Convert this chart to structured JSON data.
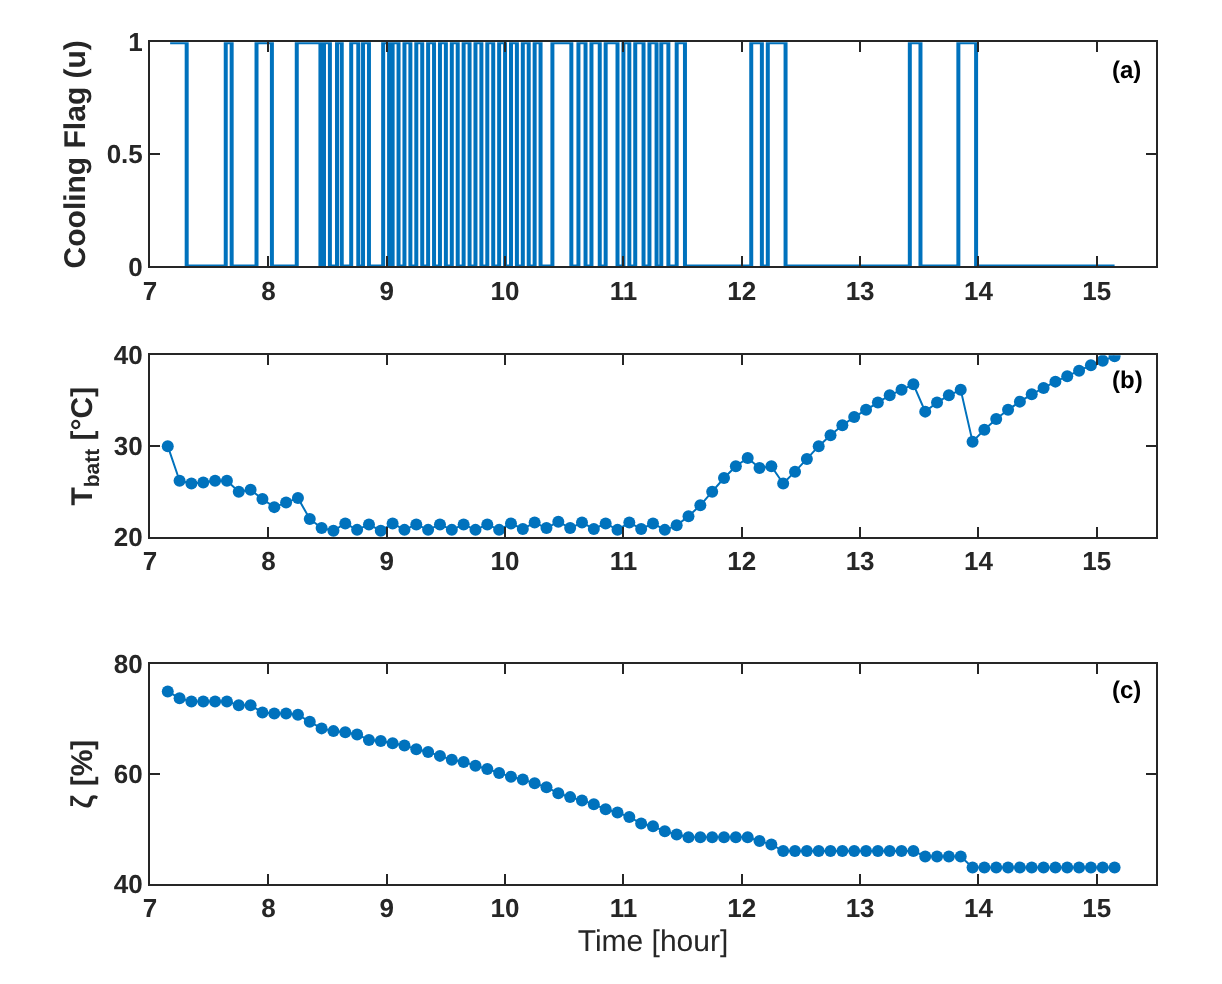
{
  "chart_data": [
    {
      "type": "step",
      "ylabel": "Cooling Flag (u)",
      "annotations": [
        "(a)"
      ],
      "xlim": [
        7,
        15.5
      ],
      "xticks": [
        7,
        8,
        9,
        10,
        11,
        12,
        13,
        14,
        15
      ],
      "ylim": [
        0,
        1
      ],
      "yticks": [
        0,
        0.5,
        1
      ],
      "marker": "none",
      "line_style": "solid",
      "series": [
        {
          "color": "#0072bd",
          "x": [
            7.17,
            7.31,
            7.64,
            7.69,
            7.9,
            8.03,
            8.24,
            8.44,
            8.47,
            8.52,
            8.58,
            8.62,
            8.7,
            8.76,
            8.8,
            8.85,
            8.97,
            9.02,
            9.05,
            9.1,
            9.15,
            9.2,
            9.25,
            9.3,
            9.35,
            9.4,
            9.45,
            9.5,
            9.55,
            9.6,
            9.65,
            9.7,
            9.75,
            9.8,
            9.85,
            9.9,
            9.95,
            10.0,
            10.05,
            10.1,
            10.15,
            10.2,
            10.25,
            10.3,
            10.4,
            10.56,
            10.62,
            10.68,
            10.73,
            10.8,
            10.85,
            10.95,
            11.0,
            11.05,
            11.1,
            11.17,
            11.22,
            11.28,
            11.32,
            11.38,
            11.45,
            11.52,
            12.08,
            12.17,
            12.22,
            12.37,
            13.42,
            13.51,
            13.83,
            13.98,
            15.15
          ],
          "values": [
            1,
            0,
            1,
            0,
            1,
            0,
            1,
            0,
            1,
            0,
            1,
            0,
            1,
            0,
            1,
            0,
            1,
            0,
            1,
            0,
            1,
            0,
            1,
            0,
            1,
            0,
            1,
            0,
            1,
            0,
            1,
            0,
            1,
            0,
            1,
            0,
            1,
            0,
            1,
            0,
            1,
            0,
            1,
            0,
            1,
            0,
            1,
            0,
            1,
            0,
            1,
            0,
            1,
            0,
            1,
            0,
            1,
            0,
            1,
            0,
            1,
            0,
            1,
            0,
            1,
            0,
            1,
            0,
            1,
            0,
            0
          ]
        }
      ]
    },
    {
      "type": "line",
      "ylabel": "T$_{batt}$ [°C]",
      "annotations": [
        "(b)"
      ],
      "xlim": [
        7,
        15.5
      ],
      "xticks": [
        7,
        8,
        9,
        10,
        11,
        12,
        13,
        14,
        15
      ],
      "ylim": [
        20,
        40
      ],
      "yticks": [
        20,
        30,
        40
      ],
      "marker": "circle",
      "line_style": "solid",
      "series": [
        {
          "color": "#0072bd",
          "x": [
            7.15,
            7.25,
            7.35,
            7.45,
            7.55,
            7.65,
            7.75,
            7.85,
            7.95,
            8.05,
            8.15,
            8.25,
            8.35,
            8.45,
            8.55,
            8.65,
            8.75,
            8.85,
            8.95,
            9.05,
            9.15,
            9.25,
            9.35,
            9.45,
            9.55,
            9.65,
            9.75,
            9.85,
            9.95,
            10.05,
            10.15,
            10.25,
            10.35,
            10.45,
            10.55,
            10.65,
            10.75,
            10.85,
            10.95,
            11.05,
            11.15,
            11.25,
            11.35,
            11.45,
            11.55,
            11.65,
            11.75,
            11.85,
            11.95,
            12.05,
            12.15,
            12.25,
            12.35,
            12.45,
            12.55,
            12.65,
            12.75,
            12.85,
            12.95,
            13.05,
            13.15,
            13.25,
            13.35,
            13.45,
            13.55,
            13.65,
            13.75,
            13.85,
            13.95,
            14.05,
            14.15,
            14.25,
            14.35,
            14.45,
            14.55,
            14.65,
            14.75,
            14.85,
            14.95,
            15.05,
            15.15
          ],
          "values": [
            30,
            26.2,
            25.9,
            26.0,
            26.2,
            26.2,
            25.0,
            25.2,
            24.2,
            23.3,
            23.8,
            24.3,
            22.0,
            21.0,
            20.7,
            21.5,
            20.8,
            21.4,
            20.7,
            21.5,
            20.8,
            21.4,
            20.8,
            21.4,
            20.8,
            21.4,
            20.8,
            21.4,
            20.8,
            21.5,
            20.9,
            21.6,
            21.0,
            21.7,
            21.0,
            21.6,
            20.9,
            21.5,
            20.8,
            21.6,
            20.9,
            21.5,
            20.8,
            21.3,
            22.3,
            23.5,
            25.0,
            26.5,
            27.8,
            28.7,
            27.6,
            27.8,
            25.9,
            27.2,
            28.6,
            30.0,
            31.2,
            32.3,
            33.2,
            34.0,
            34.8,
            35.6,
            36.2,
            36.8,
            33.8,
            34.8,
            35.6,
            36.2,
            30.5,
            31.8,
            33.0,
            34.0,
            34.9,
            35.7,
            36.4,
            37.1,
            37.7,
            38.3,
            38.9,
            39.4,
            39.9
          ]
        }
      ]
    },
    {
      "type": "line",
      "xlabel": "Time [hour]",
      "ylabel": "ζ [%]",
      "annotations": [
        "(c)"
      ],
      "xlim": [
        7,
        15.5
      ],
      "xticks": [
        7,
        8,
        9,
        10,
        11,
        12,
        13,
        14,
        15
      ],
      "ylim": [
        40,
        80
      ],
      "yticks": [
        40,
        60,
        80
      ],
      "marker": "circle",
      "line_style": "solid",
      "series": [
        {
          "color": "#0072bd",
          "x": [
            7.15,
            7.25,
            7.35,
            7.45,
            7.55,
            7.65,
            7.75,
            7.85,
            7.95,
            8.05,
            8.15,
            8.25,
            8.35,
            8.45,
            8.55,
            8.65,
            8.75,
            8.85,
            8.95,
            9.05,
            9.15,
            9.25,
            9.35,
            9.45,
            9.55,
            9.65,
            9.75,
            9.85,
            9.95,
            10.05,
            10.15,
            10.25,
            10.35,
            10.45,
            10.55,
            10.65,
            10.75,
            10.85,
            10.95,
            11.05,
            11.15,
            11.25,
            11.35,
            11.45,
            11.55,
            11.65,
            11.75,
            11.85,
            11.95,
            12.05,
            12.15,
            12.25,
            12.35,
            12.45,
            12.55,
            12.65,
            12.75,
            12.85,
            12.95,
            13.05,
            13.15,
            13.25,
            13.35,
            13.45,
            13.55,
            13.65,
            13.75,
            13.85,
            13.95,
            14.05,
            14.15,
            14.25,
            14.35,
            14.45,
            14.55,
            14.65,
            14.75,
            14.85,
            14.95,
            15.05,
            15.15
          ],
          "values": [
            75,
            73.8,
            73.2,
            73.2,
            73.2,
            73.2,
            72.5,
            72.5,
            71.2,
            71,
            71,
            70.8,
            69.5,
            68.3,
            67.8,
            67.6,
            67.2,
            66.2,
            66,
            65.6,
            65.2,
            64.5,
            64,
            63.3,
            62.6,
            62.2,
            61.5,
            60.9,
            60.2,
            59.5,
            59,
            58.3,
            57.6,
            56.5,
            55.8,
            55.2,
            54.5,
            53.6,
            53,
            52.2,
            51,
            50.5,
            49.6,
            49,
            48.5,
            48.5,
            48.5,
            48.5,
            48.5,
            48.5,
            47.8,
            47.2,
            46,
            46,
            46,
            46,
            46,
            46,
            46,
            46,
            46,
            46,
            46,
            46,
            45,
            45,
            45,
            45,
            43,
            43,
            43,
            43,
            43,
            43,
            43,
            43,
            43,
            43,
            43,
            43,
            43
          ]
        }
      ]
    }
  ]
}
